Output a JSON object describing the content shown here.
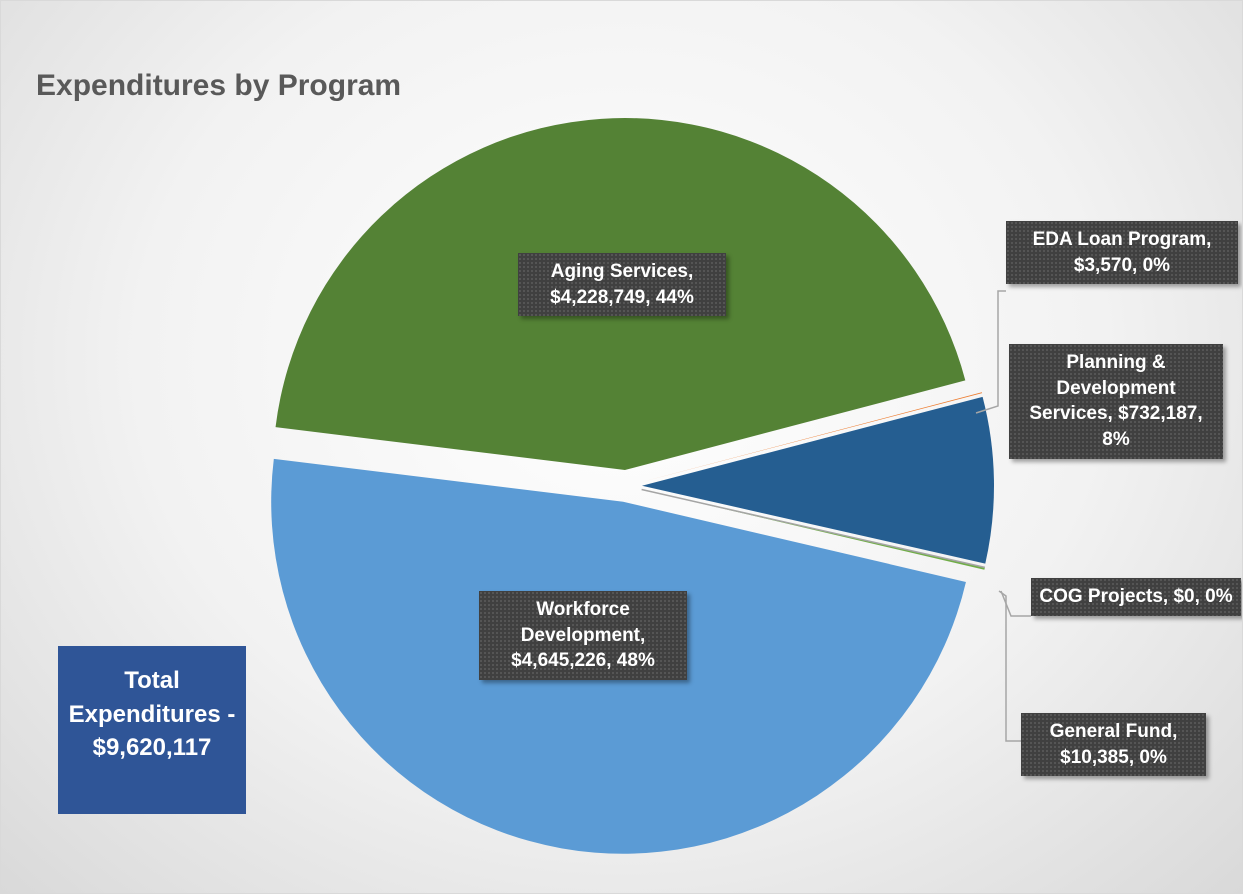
{
  "chart_data": {
    "type": "pie",
    "title": "Expenditures by Program",
    "annotation": "Total Expenditures - $9,620,117",
    "values": [
      4228749,
      3570,
      732187,
      0,
      10385,
      4645226
    ],
    "value_labels": [
      "Aging Services, $4,228,749, 44%",
      "EDA Loan Program, $3,570, 0%",
      "Planning & Development Services, $732,187, 8%",
      "COG Projects, $0, 0%",
      "General Fund, $10,385, 0%",
      "Workforce Development, $4,645,226, 48%"
    ],
    "colors": [
      "#548235",
      "#ed7d31",
      "#255e91",
      "#a5a5a5",
      "#70ad47",
      "#5b9bd5"
    ]
  }
}
